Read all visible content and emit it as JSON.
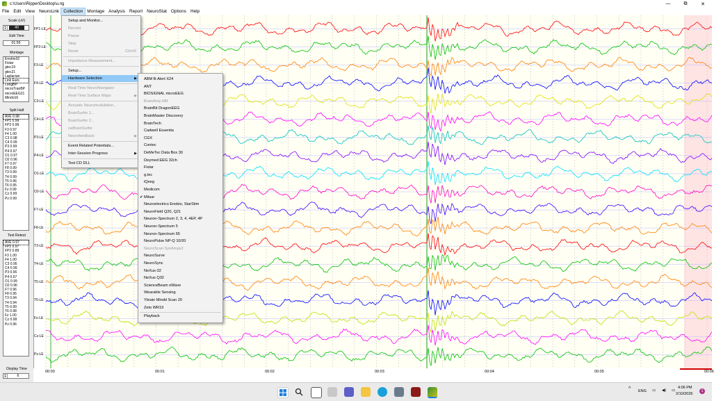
{
  "window": {
    "title": "c:\\Users\\Ripper\\Desktop\\u.ng",
    "minimize": "—",
    "maximize": "⧉",
    "close": "✕"
  },
  "menu": [
    {
      "label": "File",
      "active": false
    },
    {
      "label": "Edit",
      "active": false
    },
    {
      "label": "View",
      "active": false
    },
    {
      "label": "NeuroLink",
      "active": false
    },
    {
      "label": "Collection",
      "active": true
    },
    {
      "label": "Montage",
      "active": false
    },
    {
      "label": "Analysis",
      "active": false
    },
    {
      "label": "Report",
      "active": false
    },
    {
      "label": "NeuroStat",
      "active": false
    },
    {
      "label": "Options",
      "active": false
    },
    {
      "label": "Help",
      "active": false
    }
  ],
  "left_panel": {
    "scale_label": "Scale (uV)",
    "scale_value": "40",
    "edit_time_label": "Edit Time",
    "edit_time_value": "01:55",
    "montage_label": "Montage",
    "montage_items": [
      "Enobio32",
      "Fistar",
      "gtec19",
      "gtec21",
      "Laplacian",
      "Link Ears",
      "LongBP",
      "microTranBP",
      "microEEG21",
      "Mindo16"
    ],
    "montage_selected": "Link Ears",
    "split_half_label": "Split Half",
    "split_half_rows": [
      "AVE 0.98",
      "FP1 0.99",
      "FP2 0.99",
      "F3  0.97",
      "F4  1.00",
      "C3  0.98",
      "C4  0.99",
      "P3  0.99",
      "P4  0.97",
      "O1  0.97",
      "O2  0.96",
      "F7  0.97",
      "F8  0.99",
      "T3  0.99",
      "T4  0.99",
      "T5  0.96",
      "T6  0.95",
      "Fz  0.99",
      "Cz  0.99",
      "Pz  0.99"
    ],
    "test_retest_label": "Test Retest",
    "test_retest_rows": [
      "AVE 0.97",
      "FP1 0.97",
      "FP2 0.89",
      "F3  1.00",
      "F4  1.00",
      "C3  0.95",
      "C4  0.99",
      "P3  0.96",
      "P4  0.97",
      "O1  0.99",
      "O2  0.96",
      "F7  0.96",
      "F8  0.95",
      "T3  0.94",
      "T4  0.94",
      "T5  0.99",
      "T6  0.98",
      "Fz  1.00",
      "Cz  0.98",
      "Pz  0.96"
    ],
    "display_time_label": "Display Time",
    "display_time_value": "6"
  },
  "channels": [
    {
      "label": "FP1-LE",
      "color": "#ff0000"
    },
    {
      "label": "FP2-LE",
      "color": "#00c000"
    },
    {
      "label": "F3-LE",
      "color": "#ff8000"
    },
    {
      "label": "F4-LE",
      "color": "#0000ff"
    },
    {
      "label": "C3-LE",
      "color": "#e0e000"
    },
    {
      "label": "C4-LE",
      "color": "#ff00ff"
    },
    {
      "label": "P3-LE",
      "color": "#00c0c0"
    },
    {
      "label": "P4-LE",
      "color": "#8000ff"
    },
    {
      "label": "O1-LE",
      "color": "#00e0ff"
    },
    {
      "label": "O2-LE",
      "color": "#ff00c0"
    },
    {
      "label": "F7-LE",
      "color": "#4000ff"
    },
    {
      "label": "F8-LE",
      "color": "#ff8000"
    },
    {
      "label": "T3-LE",
      "color": "#ff0000"
    },
    {
      "label": "T4-LE",
      "color": "#00c000"
    },
    {
      "label": "T5-LE",
      "color": "#ff8000"
    },
    {
      "label": "T6-LE",
      "color": "#0000ff"
    },
    {
      "label": "Fz-LE",
      "color": "#c0e000"
    },
    {
      "label": "Cz-LE",
      "color": "#ff00ff"
    },
    {
      "label": "Pz-LE",
      "color": "#00c000"
    }
  ],
  "time_labels": [
    "00:00",
    "00:01",
    "00:02",
    "00:03",
    "00:04",
    "00:05",
    "00:06"
  ],
  "collection_menu": [
    {
      "label": "Setup and Monitor...",
      "disabled": false
    },
    {
      "label": "Record",
      "disabled": true
    },
    {
      "label": "Pause",
      "disabled": true
    },
    {
      "label": "Stop",
      "disabled": true
    },
    {
      "label": "Reset",
      "disabled": true,
      "shortcut": "Ctrl+R"
    },
    {
      "label": "Impedance Measurement...",
      "disabled": true
    },
    {
      "label": "Setup...",
      "disabled": false
    },
    {
      "label": "Hardware Selection",
      "disabled": false,
      "highlighted": true,
      "submenu": true
    },
    {
      "label": "Real-Time NeuroNavigator",
      "disabled": true
    },
    {
      "label": "Real-Time Surface Maps",
      "disabled": true,
      "submenu": true
    },
    {
      "label": "Acoustic Neuromodulation...",
      "disabled": true
    },
    {
      "label": "BrainSurfer 1...",
      "disabled": true
    },
    {
      "label": "BrainSurfer 2...",
      "disabled": true
    },
    {
      "label": "swBrainSurfer",
      "disabled": true
    },
    {
      "label": "Neurofeedback",
      "disabled": true,
      "submenu": true
    },
    {
      "label": "Event Related Potentials...",
      "disabled": false
    },
    {
      "label": "Inter-Session Progress",
      "disabled": false,
      "submenu": true
    },
    {
      "label": "Test CD DLL",
      "disabled": false
    }
  ],
  "hardware_menu": [
    {
      "label": "ABM B-Alert X24"
    },
    {
      "label": "ANT"
    },
    {
      "label": "BIOSIGNAL microEEG"
    },
    {
      "label": "BrainAmp MR",
      "disabled": true
    },
    {
      "label": "BrainBit DragonEEG"
    },
    {
      "label": "BrainMaster Discovery"
    },
    {
      "label": "BrainTech"
    },
    {
      "label": "Cadwell Essentia"
    },
    {
      "label": "CGX"
    },
    {
      "label": "Contec"
    },
    {
      "label": "DeMeTec Data Box 30"
    },
    {
      "label": "Deymed EEG 32ch"
    },
    {
      "label": "Fistar"
    },
    {
      "label": "g.tec"
    },
    {
      "label": "iQeeg"
    },
    {
      "label": "Medicom"
    },
    {
      "label": "Mitsar",
      "checked": true
    },
    {
      "label": "Neuroelectrics Enobio, StarStim"
    },
    {
      "label": "NeuroField Q20, Q21"
    },
    {
      "label": "Neuron-Spectrum 2, 3, 4, 4EP, 4P"
    },
    {
      "label": "Neuron-Spectrum 5"
    },
    {
      "label": "Neuron-Spectrum 65"
    },
    {
      "label": "NeuroPulse NP-Q 10/20"
    },
    {
      "label": "NeuroScan SynAmps2",
      "disabled": true
    },
    {
      "label": "NeuroSurve"
    },
    {
      "label": "NeuroSync"
    },
    {
      "label": "NeXus-32"
    },
    {
      "label": "NeXus Q32"
    },
    {
      "label": "ScienceBeam eWave"
    },
    {
      "label": "Wearable Sensing"
    },
    {
      "label": "Ybrain Mindd Scan 20"
    },
    {
      "label": "Zeto WR19"
    },
    {
      "label": "Playback"
    }
  ],
  "taskbar": {
    "lang": "ENG",
    "time": "4:06 PM",
    "date": "2/10/2026",
    "notif": "1"
  }
}
